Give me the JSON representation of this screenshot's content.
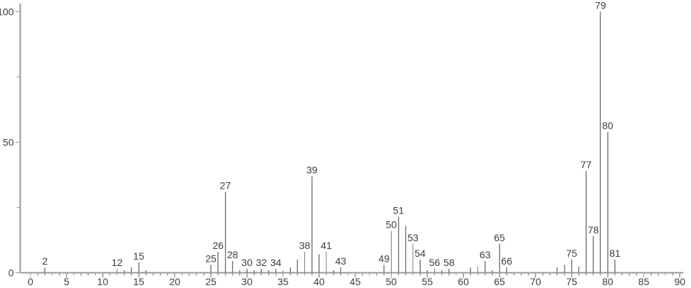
{
  "chart_data": {
    "type": "bar",
    "subtype": "mass-spectrum-stick-plot",
    "title": "",
    "xlabel": "",
    "ylabel": "",
    "xlim": [
      0,
      90
    ],
    "ylim": [
      0,
      100
    ],
    "grid": false,
    "legend": null,
    "x_tick_step_minor": 1,
    "x_tick_step_labeled": 5,
    "x_tick_labels": [
      "0",
      "5",
      "10",
      "15",
      "20",
      "25",
      "30",
      "35",
      "40",
      "45",
      "50",
      "55",
      "60",
      "65",
      "70",
      "75",
      "80",
      "85",
      "90"
    ],
    "y_ticks": [
      0,
      25,
      50,
      75,
      100
    ],
    "y_tick_labels": [
      "0",
      "50",
      "100"
    ],
    "y_labeled_ticks": [
      0,
      50,
      100
    ],
    "colors": {
      "axis": "#999999",
      "peak": "#7d7d7d",
      "text": "#3c3c3c",
      "background": "#ffffff"
    },
    "peaks": [
      {
        "mz": 2,
        "intensity": 2,
        "label": "2"
      },
      {
        "mz": 12,
        "intensity": 1.5,
        "label": "12"
      },
      {
        "mz": 13,
        "intensity": 1,
        "label": null
      },
      {
        "mz": 14,
        "intensity": 2,
        "label": null
      },
      {
        "mz": 15,
        "intensity": 4,
        "label": "15"
      },
      {
        "mz": 16,
        "intensity": 1,
        "label": null
      },
      {
        "mz": 25,
        "intensity": 3,
        "label": "25"
      },
      {
        "mz": 26,
        "intensity": 8,
        "label": "26"
      },
      {
        "mz": 27,
        "intensity": 31,
        "label": "27"
      },
      {
        "mz": 28,
        "intensity": 4.5,
        "label": "28"
      },
      {
        "mz": 29,
        "intensity": 1,
        "label": null
      },
      {
        "mz": 30,
        "intensity": 1.5,
        "label": "30"
      },
      {
        "mz": 31,
        "intensity": 1,
        "label": null
      },
      {
        "mz": 32,
        "intensity": 1.5,
        "label": "32"
      },
      {
        "mz": 33,
        "intensity": 1,
        "label": null
      },
      {
        "mz": 34,
        "intensity": 1.5,
        "label": "34"
      },
      {
        "mz": 35,
        "intensity": 1,
        "label": null
      },
      {
        "mz": 36,
        "intensity": 2,
        "label": null
      },
      {
        "mz": 37,
        "intensity": 5,
        "label": null
      },
      {
        "mz": 38,
        "intensity": 8,
        "label": "38"
      },
      {
        "mz": 39,
        "intensity": 37,
        "label": "39"
      },
      {
        "mz": 40,
        "intensity": 7,
        "label": null
      },
      {
        "mz": 41,
        "intensity": 8,
        "label": "41"
      },
      {
        "mz": 42,
        "intensity": 1,
        "label": null
      },
      {
        "mz": 43,
        "intensity": 2,
        "label": "43"
      },
      {
        "mz": 49,
        "intensity": 3,
        "label": "49"
      },
      {
        "mz": 50,
        "intensity": 16,
        "label": "50"
      },
      {
        "mz": 51,
        "intensity": 21.5,
        "label": "51"
      },
      {
        "mz": 52,
        "intensity": 18,
        "label": null
      },
      {
        "mz": 53,
        "intensity": 11,
        "label": "53"
      },
      {
        "mz": 54,
        "intensity": 5,
        "label": "54"
      },
      {
        "mz": 55,
        "intensity": 1,
        "label": null
      },
      {
        "mz": 56,
        "intensity": 1.5,
        "label": "56"
      },
      {
        "mz": 57,
        "intensity": 1,
        "label": null
      },
      {
        "mz": 58,
        "intensity": 1.5,
        "label": "58"
      },
      {
        "mz": 61,
        "intensity": 2,
        "label": null
      },
      {
        "mz": 62,
        "intensity": 2.5,
        "label": null
      },
      {
        "mz": 63,
        "intensity": 4.5,
        "label": "63"
      },
      {
        "mz": 64,
        "intensity": 1,
        "label": null
      },
      {
        "mz": 65,
        "intensity": 11,
        "label": "65"
      },
      {
        "mz": 66,
        "intensity": 2,
        "label": "66"
      },
      {
        "mz": 73,
        "intensity": 2,
        "label": null
      },
      {
        "mz": 74,
        "intensity": 3,
        "label": null
      },
      {
        "mz": 75,
        "intensity": 5,
        "label": "75"
      },
      {
        "mz": 76,
        "intensity": 2.5,
        "label": null
      },
      {
        "mz": 77,
        "intensity": 39,
        "label": "77"
      },
      {
        "mz": 78,
        "intensity": 14,
        "label": "78"
      },
      {
        "mz": 79,
        "intensity": 100,
        "label": "79"
      },
      {
        "mz": 80,
        "intensity": 54,
        "label": "80"
      },
      {
        "mz": 81,
        "intensity": 5,
        "label": "81"
      }
    ]
  }
}
